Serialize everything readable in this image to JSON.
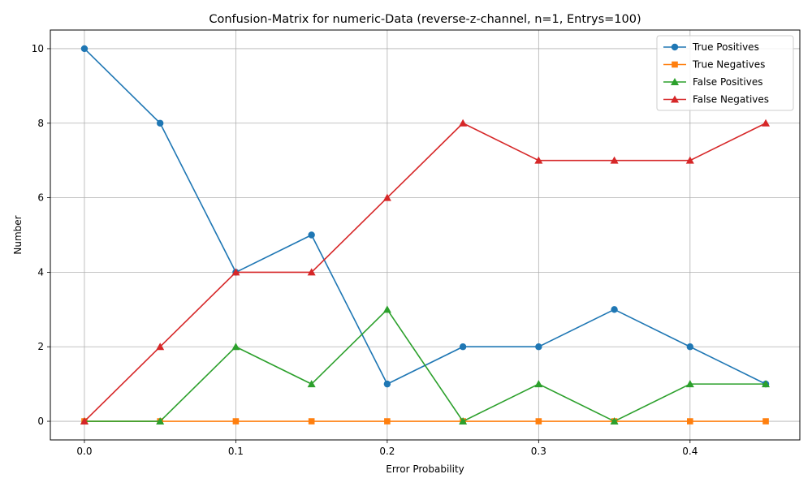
{
  "chart_data": {
    "type": "line",
    "title": "Confusion-Matrix for numeric-Data (reverse-z-channel, n=1, Entrys=100)",
    "xlabel": "Error Probability",
    "ylabel": "Number",
    "x": [
      0.0,
      0.05,
      0.1,
      0.15,
      0.2,
      0.25,
      0.3,
      0.35,
      0.4,
      0.45
    ],
    "xlim": [
      -0.0225,
      0.4725
    ],
    "ylim": [
      -0.5,
      10.5
    ],
    "xticks": [
      "0.0",
      "0.1",
      "0.2",
      "0.3",
      "0.4"
    ],
    "xtick_values": [
      0.0,
      0.1,
      0.2,
      0.3,
      0.4
    ],
    "yticks": [
      "0",
      "2",
      "4",
      "6",
      "8",
      "10"
    ],
    "ytick_values": [
      0,
      2,
      4,
      6,
      8,
      10
    ],
    "grid": true,
    "legend_position": "top-right",
    "series": [
      {
        "name": "True Positives",
        "color": "#1f77b4",
        "marker": "circle",
        "values": [
          10,
          8,
          4,
          5,
          1,
          2,
          2,
          3,
          2,
          1
        ]
      },
      {
        "name": "True Negatives",
        "color": "#ff7f0e",
        "marker": "square",
        "values": [
          0,
          0,
          0,
          0,
          0,
          0,
          0,
          0,
          0,
          0
        ]
      },
      {
        "name": "False Positives",
        "color": "#2ca02c",
        "marker": "triangle",
        "values": [
          0,
          0,
          2,
          1,
          3,
          0,
          1,
          0,
          1,
          1
        ]
      },
      {
        "name": "False Negatives",
        "color": "#d62728",
        "marker": "triangle",
        "values": [
          0,
          2,
          4,
          4,
          6,
          8,
          7,
          7,
          7,
          8
        ]
      }
    ]
  }
}
